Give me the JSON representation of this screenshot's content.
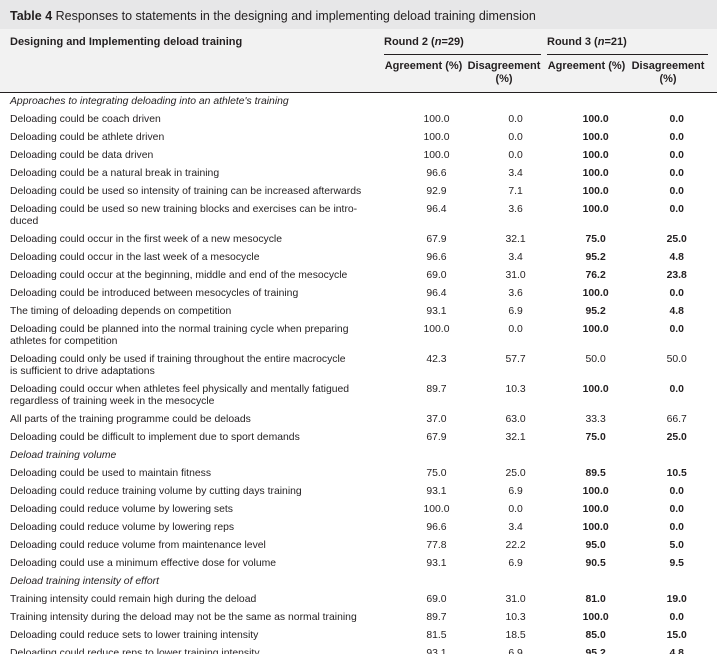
{
  "caption": {
    "label": "Table 4",
    "text": "Responses to statements in the designing and implementing deload training dimension"
  },
  "header": {
    "col1": "Designing and Implementing deload training",
    "round2_prefix": "Round 2 (",
    "round2_n": "n",
    "round2_suffix": "=29)",
    "round3_prefix": "Round 3 (",
    "round3_n": "n",
    "round3_suffix": "=21)",
    "agreement": "Agreement (%)",
    "disagreement_line1": "Disagreement",
    "disagreement_line2": "(%)"
  },
  "rows": [
    {
      "type": "section",
      "label": "Approaches to integrating deloading into an athlete's training"
    },
    {
      "label": "Deloading could be coach driven",
      "r2a": "100.0",
      "r2d": "0.0",
      "r3a": "100.0",
      "r3d": "0.0"
    },
    {
      "label": "Deloading could be athlete driven",
      "r2a": "100.0",
      "r2d": "0.0",
      "r3a": "100.0",
      "r3d": "0.0"
    },
    {
      "label": "Deloading could be data driven",
      "r2a": "100.0",
      "r2d": "0.0",
      "r3a": "100.0",
      "r3d": "0.0"
    },
    {
      "label": "Deloading could be a natural break in training",
      "r2a": "96.6",
      "r2d": "3.4",
      "r3a": "100.0",
      "r3d": "0.0"
    },
    {
      "label": "Deloading could be used so intensity of training can be increased afterwards",
      "r2a": "92.9",
      "r2d": "7.1",
      "r3a": "100.0",
      "r3d": "0.0"
    },
    {
      "label": "Deloading could be used so new training blocks and exercises can be intro-",
      "label2": "duced",
      "r2a": "96.4",
      "r2d": "3.6",
      "r3a": "100.0",
      "r3d": "0.0",
      "tall": true
    },
    {
      "label": "Deloading could occur in the first week of a new mesocycle",
      "r2a": "67.9",
      "r2d": "32.1",
      "r3a": "75.0",
      "r3d": "25.0"
    },
    {
      "label": "Deloading could occur in the last week of a mesocycle",
      "r2a": "96.6",
      "r2d": "3.4",
      "r3a": "95.2",
      "r3d": "4.8"
    },
    {
      "label": "Deloading could occur at the beginning, middle and end of the mesocycle",
      "r2a": "69.0",
      "r2d": "31.0",
      "r3a": "76.2",
      "r3d": "23.8"
    },
    {
      "label": "Deloading could be introduced between mesocycles of training",
      "r2a": "96.4",
      "r2d": "3.6",
      "r3a": "100.0",
      "r3d": "0.0"
    },
    {
      "label": "The timing of deloading depends on competition",
      "r2a": "93.1",
      "r2d": "6.9",
      "r3a": "95.2",
      "r3d": "4.8"
    },
    {
      "label": "Deloading could be planned into the normal training cycle when preparing",
      "label2": "athletes for competition",
      "r2a": "100.0",
      "r2d": "0.0",
      "r3a": "100.0",
      "r3d": "0.0",
      "tall": true
    },
    {
      "label": "Deloading could only be used if training throughout the entire macrocycle",
      "label2": "is sufficient to drive adaptations",
      "r2a": "42.3",
      "r2d": "57.7",
      "r3a": "50.0",
      "r3d": "50.0",
      "tall": true,
      "r3normal": true
    },
    {
      "label": "Deloading could occur when athletes feel physically and mentally fatigued",
      "label2": "regardless of training week in the mesocycle",
      "r2a": "89.7",
      "r2d": "10.3",
      "r3a": "100.0",
      "r3d": "0.0",
      "tall": true
    },
    {
      "label": "All parts of the training programme could be deloads",
      "r2a": "37.0",
      "r2d": "63.0",
      "r3a": "33.3",
      "r3d": "66.7",
      "r3normal": true
    },
    {
      "label": "Deloading could be difficult to implement due to sport demands",
      "r2a": "67.9",
      "r2d": "32.1",
      "r3a": "75.0",
      "r3d": "25.0"
    },
    {
      "type": "section",
      "label": "Deload training volume"
    },
    {
      "label": "Deloading could be used to maintain fitness",
      "r2a": "75.0",
      "r2d": "25.0",
      "r3a": "89.5",
      "r3d": "10.5"
    },
    {
      "label": "Deloading could reduce training volume by cutting days training",
      "r2a": "93.1",
      "r2d": "6.9",
      "r3a": "100.0",
      "r3d": "0.0"
    },
    {
      "label": "Deloading could reduce volume by lowering sets",
      "r2a": "100.0",
      "r2d": "0.0",
      "r3a": "100.0",
      "r3d": "0.0"
    },
    {
      "label": "Deloading could reduce volume by lowering reps",
      "r2a": "96.6",
      "r2d": "3.4",
      "r3a": "100.0",
      "r3d": "0.0"
    },
    {
      "label": "Deloading could reduce volume from maintenance level",
      "r2a": "77.8",
      "r2d": "22.2",
      "r3a": "95.0",
      "r3d": "5.0"
    },
    {
      "label": "Deloading could use a minimum effective dose for volume",
      "r2a": "93.1",
      "r2d": "6.9",
      "r3a": "90.5",
      "r3d": "9.5"
    },
    {
      "type": "section",
      "label": "Deload training intensity of effort"
    },
    {
      "label": "Training intensity could remain high during the deload",
      "r2a": "69.0",
      "r2d": "31.0",
      "r3a": "81.0",
      "r3d": "19.0"
    },
    {
      "label": "Training intensity during the deload may not be the same as normal training",
      "r2a": "89.7",
      "r2d": "10.3",
      "r3a": "100.0",
      "r3d": "0.0"
    },
    {
      "label": "Deloading could reduce sets to lower training intensity",
      "r2a": "81.5",
      "r2d": "18.5",
      "r3a": "85.0",
      "r3d": "15.0"
    },
    {
      "label": "Deloading could reduce reps to lower training intensity",
      "r2a": "93.1",
      "r2d": "6.9",
      "r3a": "95.2",
      "r3d": "4.8"
    }
  ]
}
